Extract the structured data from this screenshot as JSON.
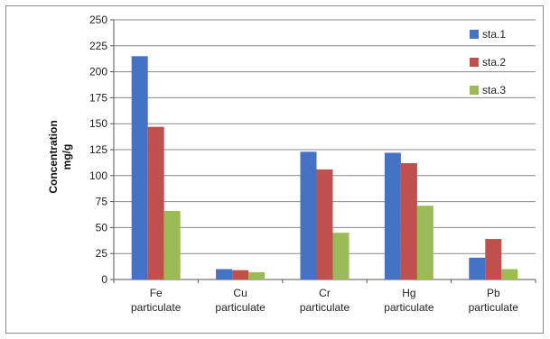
{
  "chart_data": {
    "type": "bar",
    "title": "",
    "ylabel_line1": "Concentration",
    "ylabel_line2": "mg/g",
    "xlabel": "",
    "ylim": [
      0,
      250
    ],
    "yticks": [
      0,
      25,
      50,
      75,
      100,
      125,
      150,
      175,
      200,
      225,
      250
    ],
    "grid": true,
    "legend_position": "top-right",
    "categories": [
      [
        "Fe",
        "particulate"
      ],
      [
        "Cu",
        "particulate"
      ],
      [
        "Cr",
        "particulate"
      ],
      [
        "Hg",
        "particulate"
      ],
      [
        "Pb",
        "particulate"
      ]
    ],
    "series": [
      {
        "name": "sta.1",
        "color": "#4472c4",
        "values": [
          215,
          10,
          123,
          122,
          21
        ]
      },
      {
        "name": "sta.2",
        "color": "#c0504d",
        "values": [
          147,
          9,
          106,
          112,
          39
        ]
      },
      {
        "name": "sta.3",
        "color": "#9bbb59",
        "values": [
          66,
          7,
          45,
          71,
          10
        ]
      }
    ]
  }
}
